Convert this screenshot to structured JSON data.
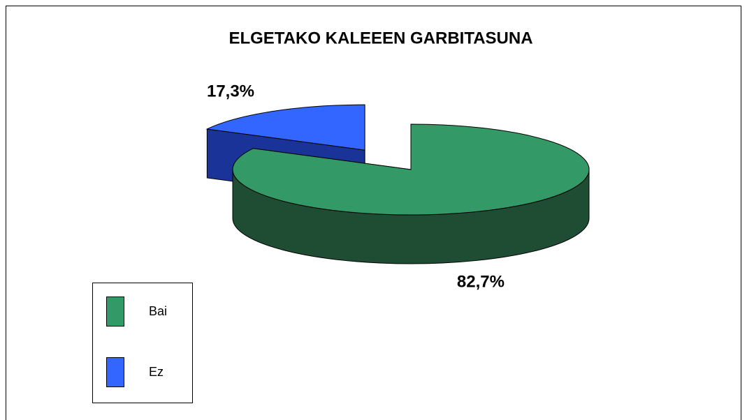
{
  "chart_data": {
    "type": "pie",
    "title": "ELGETAKO KALEEEN GARBITASUNA",
    "categories": [
      "Bai",
      "Ez"
    ],
    "values": [
      82.7,
      17.3
    ],
    "value_labels": [
      "82,7%",
      "17,3%"
    ],
    "colors": [
      "#339966",
      "#3366ff"
    ],
    "side_colors": [
      "#1e4d34",
      "#1a3399"
    ],
    "legend": "bottom-left"
  }
}
